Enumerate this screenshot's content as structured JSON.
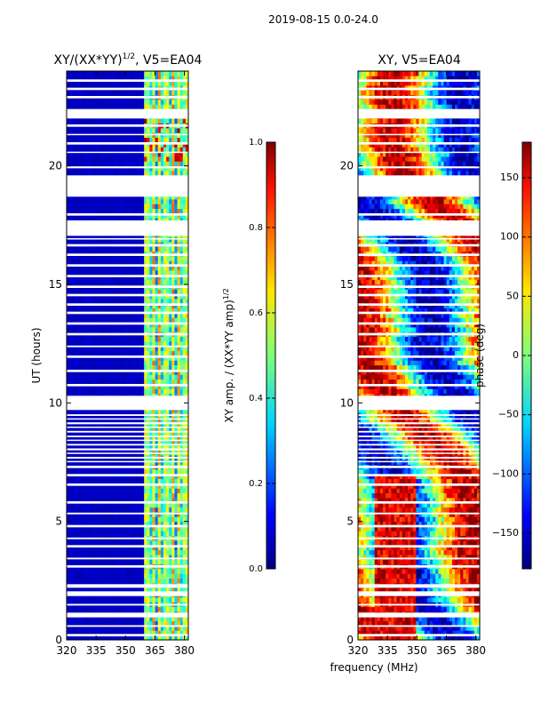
{
  "suptitle": "2019-08-15 0.0-24.0",
  "xlabel_shared": "frequency (MHz)",
  "chart_data": [
    {
      "type": "heatmap",
      "title_main": "XY/(XX*YY)",
      "title_sup": "1/2",
      "title_tail": ", V5=EA04",
      "ylabel": "UT (hours)",
      "xlim": [
        320,
        382
      ],
      "ylim": [
        0,
        24
      ],
      "xticks": [
        320,
        335,
        350,
        365,
        380
      ],
      "yticks": [
        0,
        5,
        10,
        15,
        20
      ],
      "colorbar": {
        "label_main": "XY amp. / (XX*YY amp)",
        "label_sup": "1/2",
        "range": [
          0.0,
          1.0
        ],
        "ticks": [
          "0.0",
          "0.2",
          "0.4",
          "0.6",
          "0.8",
          "1.0"
        ],
        "colormap": "jet"
      },
      "high_band_MHz": [
        360,
        382
      ],
      "low_band_level": 0.05
    },
    {
      "type": "heatmap",
      "title": "XY, V5=EA04",
      "xlim": [
        320,
        382
      ],
      "ylim": [
        0,
        24
      ],
      "xticks": [
        320,
        335,
        350,
        365,
        380
      ],
      "yticks": [
        0,
        5,
        10,
        15,
        20
      ],
      "colorbar": {
        "label": "phase (deg)",
        "range": [
          -180,
          180
        ],
        "ticks": [
          "−150",
          "−100",
          "−50",
          "0",
          "50",
          "100",
          "150"
        ],
        "colormap": "jet"
      }
    }
  ],
  "gaps_UT_hours": [
    [
      0.15,
      0.25
    ],
    [
      0.55,
      0.62
    ],
    [
      0.95,
      1.15
    ],
    [
      1.45,
      1.52
    ],
    [
      1.85,
      2.05
    ],
    [
      2.2,
      2.35
    ],
    [
      3.05,
      3.15
    ],
    [
      3.4,
      3.47
    ],
    [
      3.9,
      4.0
    ],
    [
      4.25,
      4.32
    ],
    [
      4.75,
      4.85
    ],
    [
      5.3,
      5.37
    ],
    [
      5.75,
      5.85
    ],
    [
      6.5,
      6.6
    ],
    [
      6.9,
      7.0
    ],
    [
      7.25,
      7.35
    ],
    [
      7.5,
      7.55
    ],
    [
      7.65,
      7.72
    ],
    [
      7.85,
      7.9
    ],
    [
      8.0,
      8.08
    ],
    [
      8.2,
      8.27
    ],
    [
      8.4,
      8.45
    ],
    [
      8.55,
      8.62
    ],
    [
      8.75,
      8.82
    ],
    [
      8.95,
      9.0
    ],
    [
      9.1,
      9.18
    ],
    [
      9.3,
      9.35
    ],
    [
      9.45,
      9.52
    ],
    [
      9.7,
      10.3
    ],
    [
      10.7,
      10.8
    ],
    [
      11.3,
      11.4
    ],
    [
      11.9,
      12.0
    ],
    [
      12.35,
      12.42
    ],
    [
      12.85,
      12.95
    ],
    [
      13.3,
      13.4
    ],
    [
      13.75,
      13.85
    ],
    [
      14.1,
      14.2
    ],
    [
      14.5,
      14.6
    ],
    [
      14.85,
      14.95
    ],
    [
      15.3,
      15.4
    ],
    [
      15.75,
      15.85
    ],
    [
      16.2,
      16.3
    ],
    [
      16.6,
      16.7
    ],
    [
      16.9,
      16.95
    ],
    [
      17.05,
      17.7
    ],
    [
      17.9,
      18.0
    ],
    [
      18.7,
      19.6
    ],
    [
      19.9,
      19.98
    ],
    [
      20.55,
      20.6
    ],
    [
      20.9,
      21.0
    ],
    [
      21.3,
      21.35
    ],
    [
      21.65,
      21.75
    ],
    [
      22.0,
      22.4
    ],
    [
      22.85,
      22.95
    ],
    [
      23.2,
      23.3
    ],
    [
      23.55,
      23.65
    ]
  ]
}
